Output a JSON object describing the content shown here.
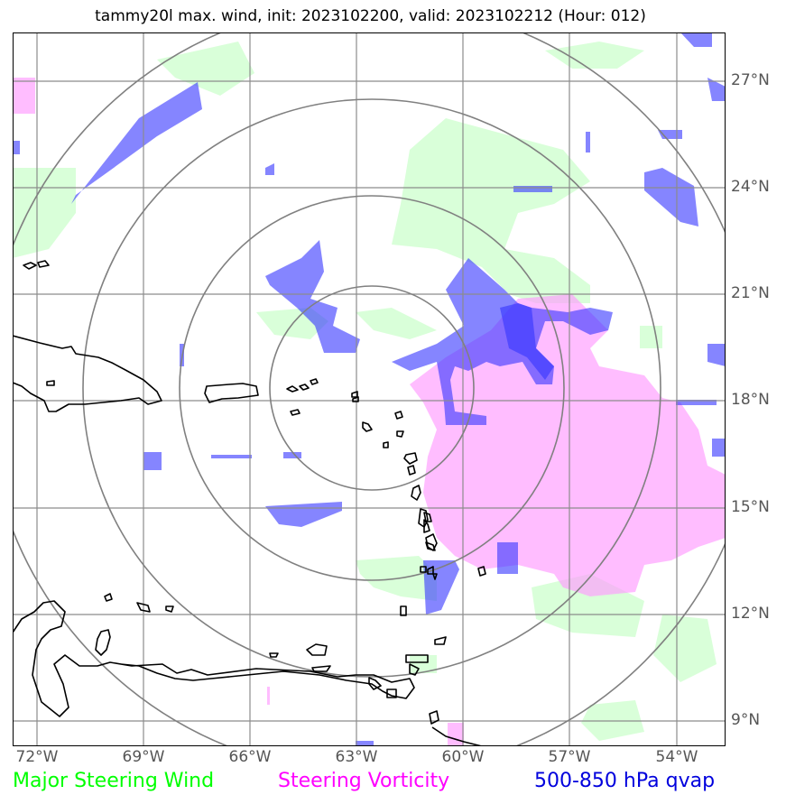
{
  "title": "tammy20l max. wind, init: 2023102200, valid: 2023102212 (Hour: 012)",
  "lat_labels": [
    "27°N",
    "24°N",
    "21°N",
    "18°N",
    "15°N",
    "12°N",
    "9°N"
  ],
  "lon_labels": [
    "72°W",
    "69°W",
    "66°W",
    "63°W",
    "60°W",
    "57°W",
    "54°W"
  ],
  "legend": {
    "wind": {
      "label": "Major Steering Wind",
      "color": "#00ff00"
    },
    "vorticity": {
      "label": "Steering Vorticity",
      "color": "#ff00ff"
    },
    "qvap": {
      "label": "500-850 hPa qvap",
      "color": "#0000dd"
    }
  },
  "colors": {
    "wind_fill": "#ccffcc",
    "vorticity_fill": "#ff99ff",
    "qvap_fill": "#3333ff",
    "grid": "#8c8c8c",
    "coast": "#000000"
  }
}
